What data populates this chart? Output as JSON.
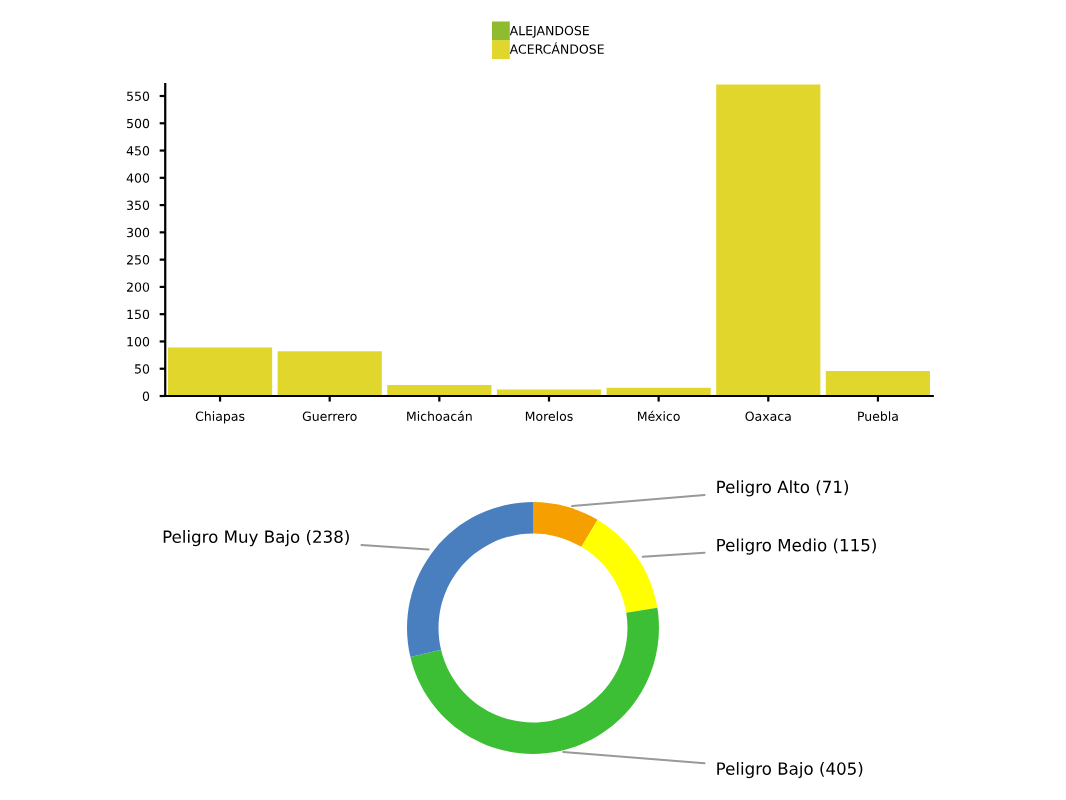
{
  "chart_data": [
    {
      "type": "bar",
      "categories": [
        "Chiapas",
        "Guerrero",
        "Michoacán",
        "Morelos",
        "México",
        "Oaxaca",
        "Puebla"
      ],
      "series": [
        {
          "name": "ALEJANDOSE",
          "color": "#8fbc2f",
          "values": [
            0,
            0,
            0,
            0,
            0,
            0,
            0
          ]
        },
        {
          "name": "ACERCÁNDOSE",
          "color": "#e1d62b",
          "values": [
            89,
            82,
            20,
            12,
            15,
            571,
            46
          ]
        }
      ],
      "ylim": [
        0,
        572
      ],
      "yticks": [
        0,
        50,
        100,
        150,
        200,
        250,
        300,
        350,
        400,
        450,
        500,
        550
      ],
      "grid": false,
      "legend": "top"
    },
    {
      "type": "donut",
      "categories": [
        "Peligro Alto (71)",
        "Peligro Medio (115)",
        "Peligro Bajo (405)",
        "Peligro Muy Bajo (238)"
      ],
      "values": [
        71,
        115,
        405,
        238
      ],
      "colors": [
        "#f5a000",
        "#ffff00",
        "#3cbf35",
        "#4a7fbf"
      ]
    }
  ]
}
